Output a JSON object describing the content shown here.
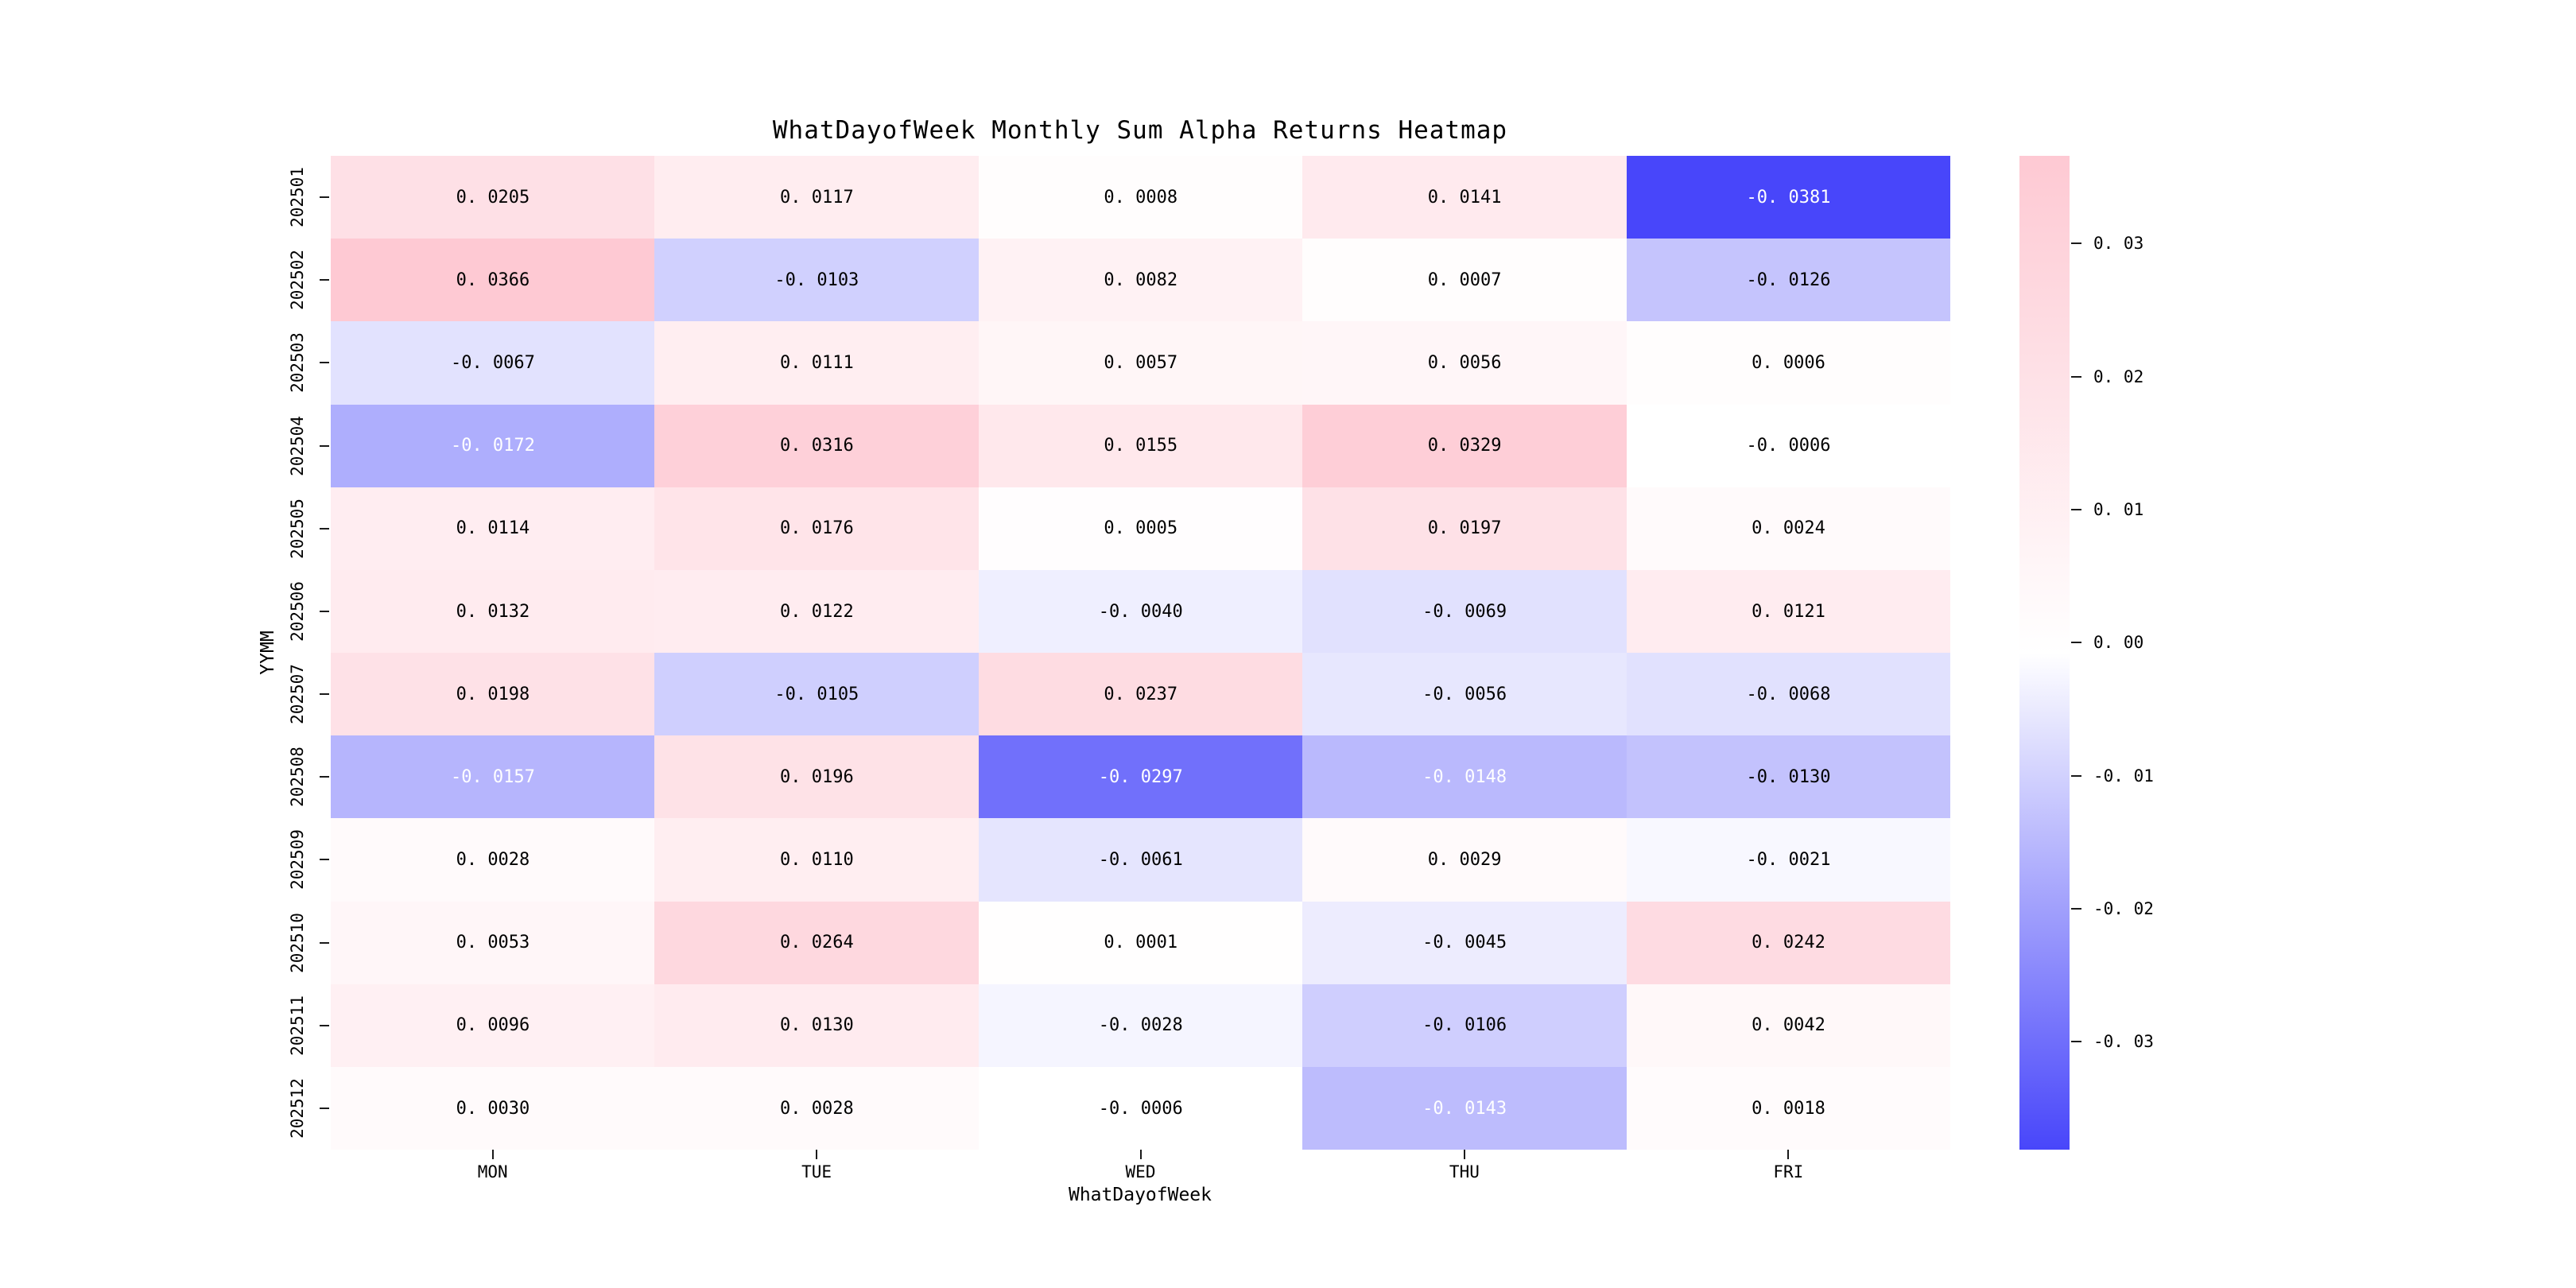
{
  "title": "WhatDayofWeek Monthly Sum Alpha Returns Heatmap",
  "chart_data": {
    "type": "heatmap",
    "title": "WhatDayofWeek Monthly Sum Alpha Returns Heatmap",
    "xlabel": "WhatDayofWeek",
    "ylabel": "YYMM",
    "columns": [
      "MON",
      "TUE",
      "WED",
      "THU",
      "FRI"
    ],
    "rows": [
      "202501",
      "202502",
      "202503",
      "202504",
      "202505",
      "202506",
      "202507",
      "202508",
      "202509",
      "202510",
      "202511",
      "202512"
    ],
    "values": [
      [
        0.0205,
        0.0117,
        0.0008,
        0.0141,
        -0.0381
      ],
      [
        0.0366,
        -0.0103,
        0.0082,
        0.0007,
        -0.0126
      ],
      [
        -0.0067,
        0.0111,
        0.0057,
        0.0056,
        0.0006
      ],
      [
        -0.0172,
        0.0316,
        0.0155,
        0.0329,
        -0.0006
      ],
      [
        0.0114,
        0.0176,
        0.0005,
        0.0197,
        0.0024
      ],
      [
        0.0132,
        0.0122,
        -0.004,
        -0.0069,
        0.0121
      ],
      [
        0.0198,
        -0.0105,
        0.0237,
        -0.0056,
        -0.0068
      ],
      [
        -0.0157,
        0.0196,
        -0.0297,
        -0.0148,
        -0.013
      ],
      [
        0.0028,
        0.011,
        -0.0061,
        0.0029,
        -0.0021
      ],
      [
        0.0053,
        0.0264,
        0.0001,
        -0.0045,
        0.0242
      ],
      [
        0.0096,
        0.013,
        -0.0028,
        -0.0106,
        0.0042
      ],
      [
        0.003,
        0.0028,
        -0.0006,
        -0.0143,
        0.0018
      ]
    ],
    "value_decimals": 4,
    "grid": false,
    "legend_position": "right-colorbar",
    "colorbar": {
      "ticks": [
        0.03,
        0.02,
        0.01,
        0.0,
        -0.01,
        -0.02,
        -0.03
      ],
      "tick_labels": [
        "0.03",
        "0.02",
        "0.01",
        "0.00",
        "-0.01",
        "-0.02",
        "-0.03"
      ],
      "vmin": -0.0381,
      "vmax": 0.0366,
      "color_min": "#4846fa",
      "color_mid": "#ffffff",
      "color_max": "#fec9d3"
    },
    "annot_color_dark": "#000000",
    "annot_color_light": "#ffffff",
    "light_text_below": -0.0138,
    "tick_color": "#1a1a1a"
  }
}
